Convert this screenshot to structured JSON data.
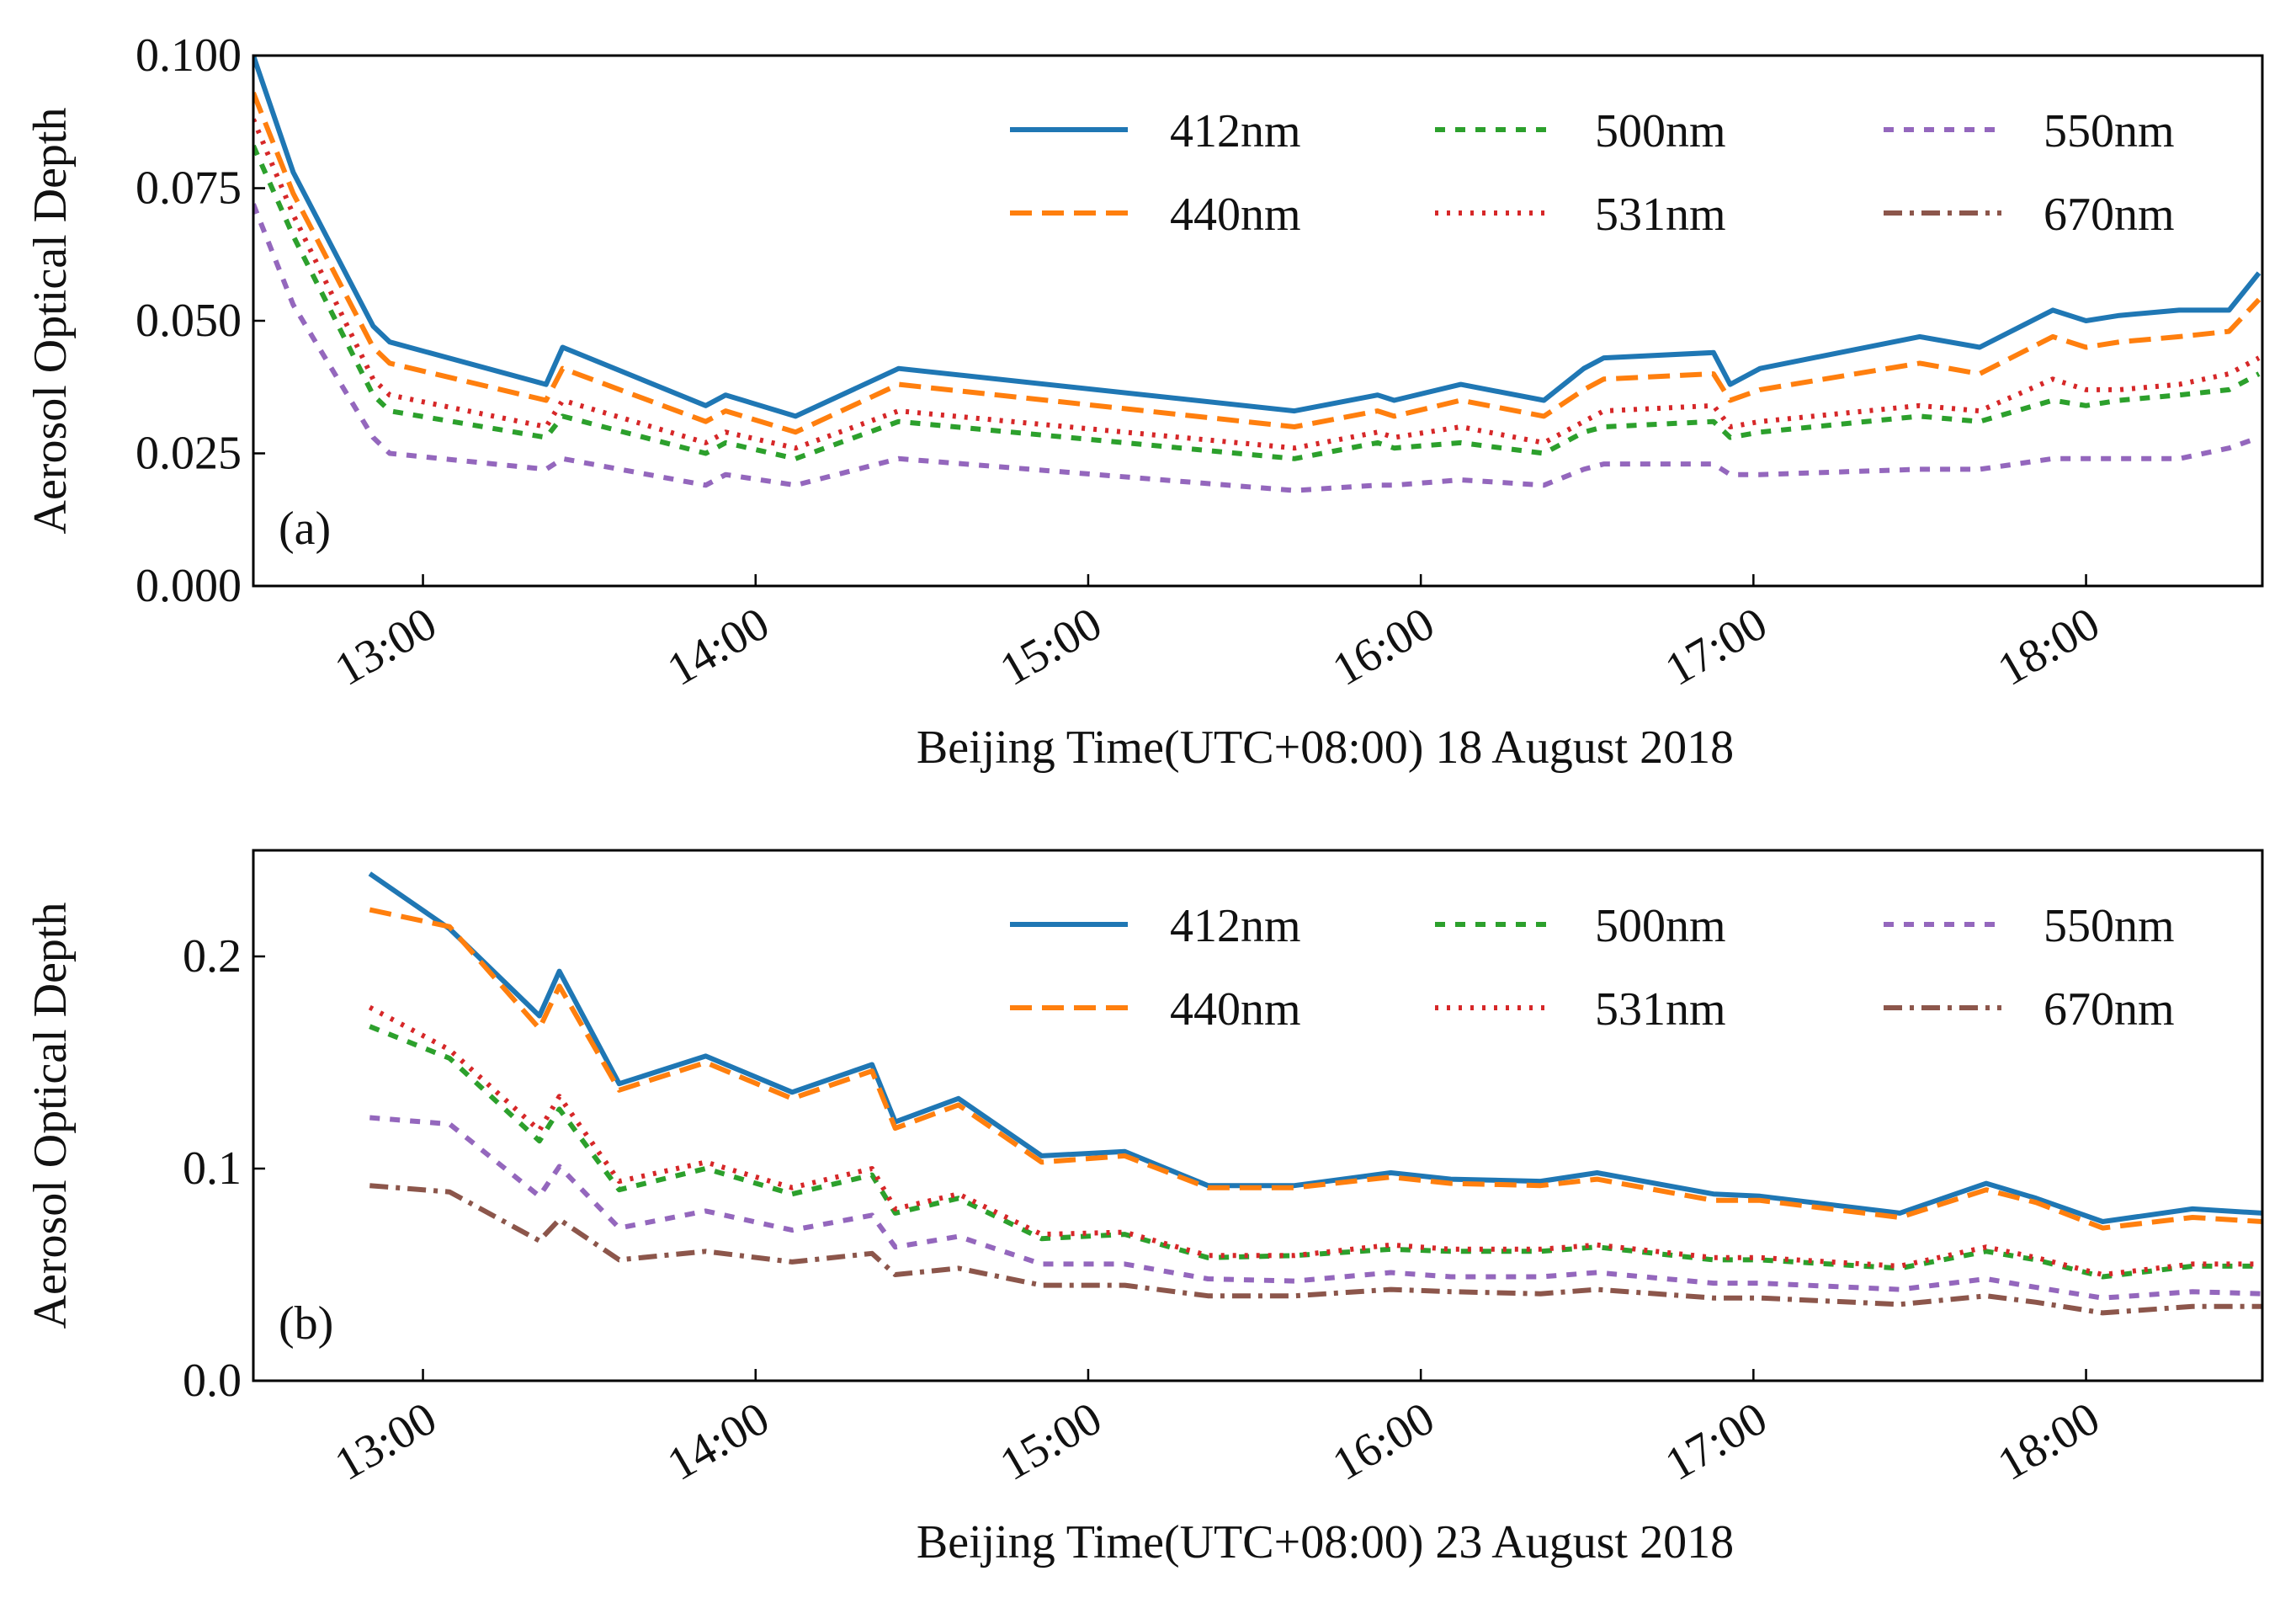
{
  "chart_data": [
    {
      "type": "line",
      "panel_label": "(a)",
      "ylabel": "Aerosol Optical Depth",
      "xlabel": "Beijing Time(UTC+08:00) 18 August 2018",
      "xlim": [
        12.49,
        18.53
      ],
      "ylim": [
        0,
        0.1
      ],
      "xticks": [
        {
          "value": 13,
          "label": "13:00"
        },
        {
          "value": 14,
          "label": "14:00"
        },
        {
          "value": 15,
          "label": "15:00"
        },
        {
          "value": 16,
          "label": "16:00"
        },
        {
          "value": 17,
          "label": "17:00"
        },
        {
          "value": 18,
          "label": "18:00"
        }
      ],
      "yticks": [
        {
          "value": 0,
          "label": "0.000"
        },
        {
          "value": 0.025,
          "label": "0.025"
        },
        {
          "value": 0.05,
          "label": "0.050"
        },
        {
          "value": 0.075,
          "label": "0.075"
        },
        {
          "value": 0.1,
          "label": "0.100"
        }
      ],
      "legend": "upper right",
      "x": [
        12.49,
        12.61,
        12.85,
        12.9,
        13.37,
        13.42,
        13.85,
        13.91,
        14.12,
        14.43,
        15.62,
        15.87,
        15.92,
        16.12,
        16.37,
        16.49,
        16.55,
        16.88,
        16.93,
        17.02,
        17.5,
        17.68,
        17.9,
        18.0,
        18.1,
        18.28,
        18.43,
        18.52
      ],
      "series": [
        {
          "name": "412nm",
          "color": "#1f77b4",
          "style": "solid",
          "values": [
            0.1,
            0.078,
            0.049,
            0.046,
            0.038,
            0.045,
            0.034,
            0.036,
            0.032,
            0.041,
            0.033,
            0.036,
            0.035,
            0.038,
            0.035,
            0.041,
            0.043,
            0.044,
            0.038,
            0.041,
            0.047,
            0.045,
            0.052,
            0.05,
            0.051,
            0.052,
            0.052,
            0.059
          ]
        },
        {
          "name": "440nm",
          "color": "#ff7f0e",
          "style": "dashed",
          "values": [
            0.093,
            0.074,
            0.045,
            0.042,
            0.035,
            0.041,
            0.031,
            0.033,
            0.029,
            0.038,
            0.03,
            0.033,
            0.032,
            0.035,
            0.032,
            0.037,
            0.039,
            0.04,
            0.035,
            0.037,
            0.042,
            0.04,
            0.047,
            0.045,
            0.046,
            0.047,
            0.048,
            0.054
          ]
        },
        {
          "name": "500nm",
          "color": "#2ca02c",
          "style": "short-dashed",
          "values": [
            0.083,
            0.066,
            0.036,
            0.033,
            0.028,
            0.032,
            0.025,
            0.027,
            0.024,
            0.031,
            0.024,
            0.027,
            0.026,
            0.027,
            0.025,
            0.029,
            0.03,
            0.031,
            0.028,
            0.029,
            0.032,
            0.031,
            0.035,
            0.034,
            0.035,
            0.036,
            0.037,
            0.04
          ]
        },
        {
          "name": "531nm",
          "color": "#d62728",
          "style": "dotted",
          "values": [
            0.088,
            0.07,
            0.039,
            0.036,
            0.03,
            0.035,
            0.027,
            0.029,
            0.026,
            0.033,
            0.026,
            0.029,
            0.028,
            0.03,
            0.027,
            0.031,
            0.033,
            0.034,
            0.03,
            0.031,
            0.034,
            0.033,
            0.039,
            0.037,
            0.037,
            0.038,
            0.04,
            0.043
          ]
        },
        {
          "name": "550nm",
          "color": "#9467bd",
          "style": "short-dashed",
          "values": [
            0.072,
            0.053,
            0.028,
            0.025,
            0.022,
            0.024,
            0.019,
            0.021,
            0.019,
            0.024,
            0.018,
            0.019,
            0.019,
            0.02,
            0.019,
            0.022,
            0.023,
            0.023,
            0.021,
            0.021,
            0.022,
            0.022,
            0.024,
            0.024,
            0.024,
            0.024,
            0.026,
            0.028
          ]
        },
        {
          "name": "670nm",
          "color": "#8c564b",
          "style": "dashdot",
          "values": [
            null,
            null,
            null,
            null,
            null,
            null,
            null,
            null,
            null,
            null,
            null,
            null,
            null,
            null,
            null,
            null,
            null,
            null,
            null,
            null,
            null,
            null,
            null,
            null,
            null,
            null,
            null,
            null
          ]
        }
      ]
    },
    {
      "type": "line",
      "panel_label": "(b)",
      "ylabel": "Aerosol Optical Depth",
      "xlabel": "Beijing Time(UTC+08:00) 23 August 2018",
      "xlim": [
        12.49,
        18.53
      ],
      "ylim": [
        0,
        0.25
      ],
      "xticks": [
        {
          "value": 13,
          "label": "13:00"
        },
        {
          "value": 14,
          "label": "14:00"
        },
        {
          "value": 15,
          "label": "15:00"
        },
        {
          "value": 16,
          "label": "16:00"
        },
        {
          "value": 17,
          "label": "17:00"
        },
        {
          "value": 18,
          "label": "18:00"
        }
      ],
      "yticks": [
        {
          "value": 0,
          "label": "0.0"
        },
        0.1,
        0.2
      ],
      "legend": "upper right",
      "x": [
        12.84,
        13.08,
        13.35,
        13.41,
        13.59,
        13.85,
        14.11,
        14.35,
        14.42,
        14.61,
        14.86,
        15.11,
        15.36,
        15.62,
        15.91,
        16.09,
        16.36,
        16.53,
        16.88,
        17.02,
        17.44,
        17.7,
        17.85,
        18.05,
        18.32,
        18.53
      ],
      "series": [
        {
          "name": "412nm",
          "color": "#1f77b4",
          "style": "solid",
          "values": [
            0.239,
            0.213,
            0.172,
            0.193,
            0.14,
            0.153,
            0.136,
            0.149,
            0.122,
            0.133,
            0.106,
            0.108,
            0.092,
            0.092,
            0.098,
            0.095,
            0.094,
            0.098,
            0.088,
            0.087,
            0.079,
            0.093,
            0.086,
            0.075,
            0.081,
            0.079
          ]
        },
        {
          "name": "440nm",
          "color": "#ff7f0e",
          "style": "dashed",
          "values": [
            0.222,
            0.214,
            0.166,
            0.186,
            0.137,
            0.15,
            0.133,
            0.146,
            0.119,
            0.13,
            0.103,
            0.106,
            0.091,
            0.091,
            0.096,
            0.093,
            0.092,
            0.095,
            0.085,
            0.085,
            0.077,
            0.09,
            0.084,
            0.072,
            0.077,
            0.075
          ]
        },
        {
          "name": "500nm",
          "color": "#2ca02c",
          "style": "short-dashed",
          "values": [
            0.167,
            0.152,
            0.113,
            0.128,
            0.09,
            0.1,
            0.088,
            0.097,
            0.079,
            0.086,
            0.067,
            0.069,
            0.058,
            0.059,
            0.062,
            0.061,
            0.061,
            0.063,
            0.057,
            0.057,
            0.053,
            0.061,
            0.057,
            0.049,
            0.054,
            0.054
          ]
        },
        {
          "name": "531nm",
          "color": "#d62728",
          "style": "dotted",
          "values": [
            0.176,
            0.156,
            0.118,
            0.134,
            0.094,
            0.103,
            0.091,
            0.1,
            0.081,
            0.088,
            0.069,
            0.07,
            0.059,
            0.059,
            0.064,
            0.062,
            0.062,
            0.064,
            0.058,
            0.058,
            0.054,
            0.063,
            0.058,
            0.05,
            0.055,
            0.055
          ]
        },
        {
          "name": "550nm",
          "color": "#9467bd",
          "style": "short-dashed",
          "values": [
            0.124,
            0.121,
            0.087,
            0.101,
            0.072,
            0.08,
            0.071,
            0.078,
            0.063,
            0.068,
            0.055,
            0.055,
            0.048,
            0.047,
            0.051,
            0.049,
            0.049,
            0.051,
            0.046,
            0.046,
            0.043,
            0.048,
            0.044,
            0.039,
            0.042,
            0.041
          ]
        },
        {
          "name": "670nm",
          "color": "#8c564b",
          "style": "dashdot",
          "values": [
            0.092,
            0.089,
            0.066,
            0.076,
            0.057,
            0.061,
            0.056,
            0.06,
            0.05,
            0.053,
            0.045,
            0.045,
            0.04,
            0.04,
            0.043,
            0.042,
            0.041,
            0.043,
            0.039,
            0.039,
            0.036,
            0.04,
            0.037,
            0.032,
            0.035,
            0.035
          ]
        }
      ]
    }
  ]
}
